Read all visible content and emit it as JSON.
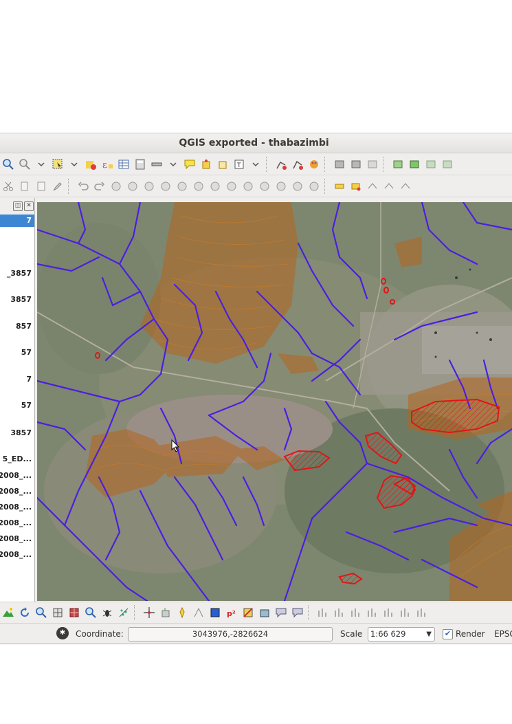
{
  "window": {
    "title": "QGIS exported - thabazimbi"
  },
  "layers_panel": {
    "items": [
      {
        "label": "7",
        "selected": true
      },
      {
        "label": "",
        "selected": false
      },
      {
        "label": "_3857",
        "selected": false
      },
      {
        "label": "3857",
        "selected": false
      },
      {
        "label": "857",
        "selected": false
      },
      {
        "label": "57",
        "selected": false
      },
      {
        "label": "7",
        "selected": false
      },
      {
        "label": "57",
        "selected": false
      },
      {
        "label": "3857",
        "selected": false
      },
      {
        "label": "5_ED...",
        "selected": false
      },
      {
        "label": "2008_...",
        "selected": false
      },
      {
        "label": "2008_...",
        "selected": false
      },
      {
        "label": "2008_...",
        "selected": false
      },
      {
        "label": "2008_...",
        "selected": false
      },
      {
        "label": "2008_...",
        "selected": false
      },
      {
        "label": "2008_...",
        "selected": false
      }
    ]
  },
  "statusbar": {
    "coordinate_label": "Coordinate:",
    "coordinate_value": "3043976,-2826624",
    "scale_label": "Scale",
    "scale_value": "1:66 629",
    "render_label": "Render",
    "render_checked": true,
    "crs_label": "EPSG"
  },
  "colors": {
    "rivers": "#4a1fe0",
    "contours": "#b5651d",
    "polygons": "#e01616",
    "selection": "#3d86d3"
  }
}
